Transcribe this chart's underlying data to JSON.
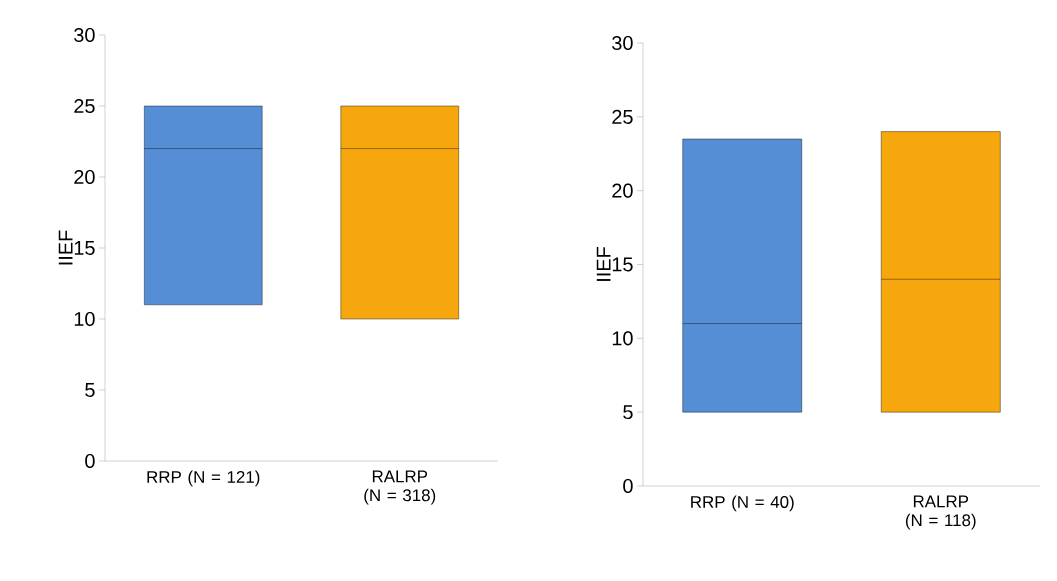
{
  "chart_data": [
    {
      "type": "box",
      "categories": [
        "RRP (N = 121)",
        "RALRP (N = 318)"
      ],
      "ylabel": "IIEF",
      "ylim": [
        0,
        30
      ],
      "yticks": [
        0,
        5,
        10,
        15,
        20,
        25,
        30
      ],
      "colors": [
        "#558ed5",
        "#f5a70d"
      ],
      "boxes": [
        {
          "low": 11,
          "q1": 11,
          "median": 22,
          "q3": 25,
          "high": 25
        },
        {
          "low": 10,
          "q1": 10,
          "median": 22,
          "q3": 25,
          "high": 25
        }
      ]
    },
    {
      "type": "box",
      "categories": [
        "RRP (N = 40)",
        "RALRP (N = 118)"
      ],
      "ylabel": "IIEF",
      "ylim": [
        0,
        30
      ],
      "yticks": [
        0,
        5,
        10,
        15,
        20,
        25,
        30
      ],
      "colors": [
        "#558ed5",
        "#f5a70d"
      ],
      "boxes": [
        {
          "low": 5,
          "q1": 5,
          "median": 11,
          "q3": 23.5,
          "high": 23.5
        },
        {
          "low": 5,
          "q1": 5,
          "median": 14,
          "q3": 24,
          "high": 24
        }
      ]
    }
  ]
}
